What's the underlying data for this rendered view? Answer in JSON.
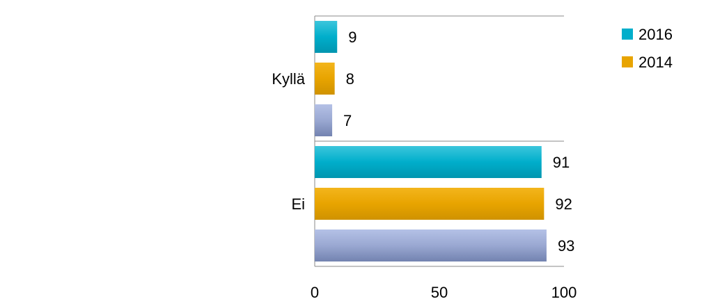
{
  "chart_data": {
    "type": "bar",
    "orientation": "horizontal",
    "categories": [
      "Kyllä",
      "Ei"
    ],
    "series": [
      {
        "name": "2016",
        "values": [
          9,
          91
        ],
        "color": "#00AECB"
      },
      {
        "name": "2014",
        "values": [
          8,
          92
        ],
        "color": "#E8A400"
      },
      {
        "name": "",
        "values": [
          7,
          93
        ],
        "color": "#8D9CC8"
      }
    ],
    "xlim": [
      0,
      100
    ],
    "xticks": [
      "0",
      "50",
      "100"
    ],
    "legend_position": "top-right",
    "grid": "horizontal separators",
    "title": "",
    "xlabel": "",
    "ylabel": ""
  }
}
